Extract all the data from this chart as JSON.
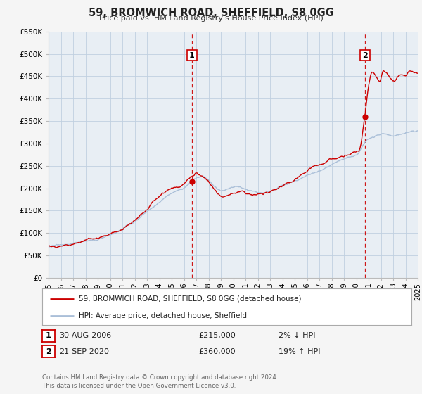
{
  "title": "59, BROMWICH ROAD, SHEFFIELD, S8 0GG",
  "subtitle": "Price paid vs. HM Land Registry's House Price Index (HPI)",
  "hpi_label": "HPI: Average price, detached house, Sheffield",
  "price_label": "59, BROMWICH ROAD, SHEFFIELD, S8 0GG (detached house)",
  "xmin": 1995,
  "xmax": 2025,
  "ymin": 0,
  "ymax": 550000,
  "yticks": [
    0,
    50000,
    100000,
    150000,
    200000,
    250000,
    300000,
    350000,
    400000,
    450000,
    500000,
    550000
  ],
  "ytick_labels": [
    "£0",
    "£50K",
    "£100K",
    "£150K",
    "£200K",
    "£250K",
    "£300K",
    "£350K",
    "£400K",
    "£450K",
    "£500K",
    "£550K"
  ],
  "xticks": [
    1995,
    1996,
    1997,
    1998,
    1999,
    2000,
    2001,
    2002,
    2003,
    2004,
    2005,
    2006,
    2007,
    2008,
    2009,
    2010,
    2011,
    2012,
    2013,
    2014,
    2015,
    2016,
    2017,
    2018,
    2019,
    2020,
    2021,
    2022,
    2023,
    2024,
    2025
  ],
  "sale1_x": 2006.66,
  "sale1_y": 215000,
  "sale1_label": "1",
  "sale1_date": "30-AUG-2006",
  "sale1_price": "£215,000",
  "sale1_hpi": "2% ↓ HPI",
  "sale2_x": 2020.72,
  "sale2_y": 360000,
  "sale2_label": "2",
  "sale2_date": "21-SEP-2020",
  "sale2_price": "£360,000",
  "sale2_hpi": "19% ↑ HPI",
  "hpi_color": "#aabfd8",
  "price_color": "#cc0000",
  "dot_color": "#cc0000",
  "vline_color": "#cc0000",
  "grid_color": "#c0d0e0",
  "bg_color": "#f5f5f5",
  "plot_bg": "#e8eef4",
  "legend_bg": "#ffffff",
  "footer": "Contains HM Land Registry data © Crown copyright and database right 2024.\nThis data is licensed under the Open Government Licence v3.0."
}
